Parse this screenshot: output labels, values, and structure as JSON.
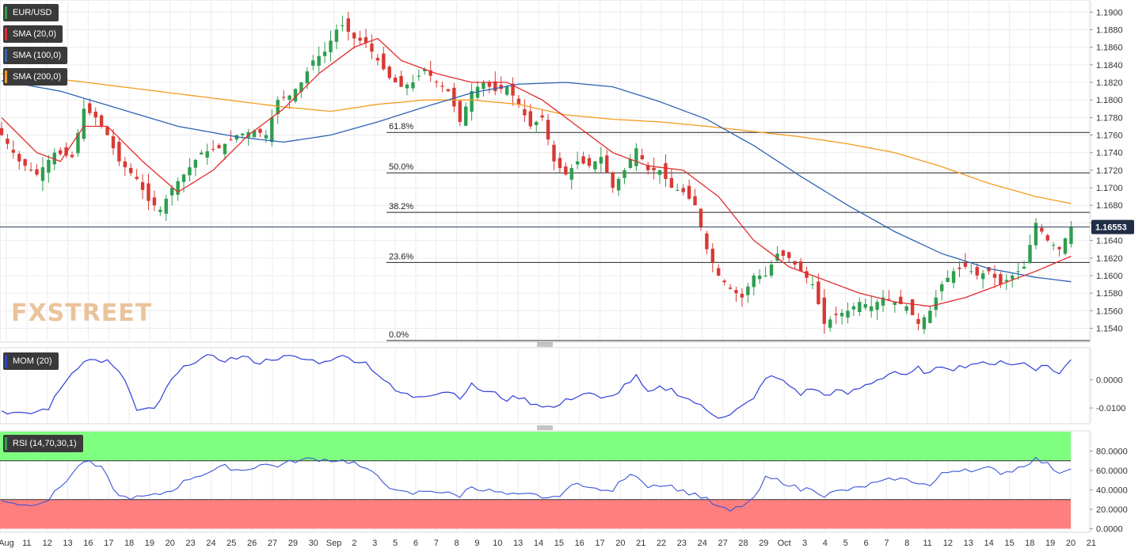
{
  "legend": {
    "symbol": "EUR/USD",
    "sma20": "SMA (20,0)",
    "sma100": "SMA (100,0)",
    "sma200": "SMA (200,0)",
    "mom": "MOM (20)",
    "rsi": "RSI (14,70,30,1)"
  },
  "watermark": {
    "part1": "FX",
    "part2": "STREET"
  },
  "current_price": "1.16553",
  "colors": {
    "up": "#2e9e4f",
    "down": "#d83a34",
    "sma20": "#e32b2b",
    "sma100": "#2e64b4",
    "sma200": "#f49c1e",
    "mom": "#2f3fd8",
    "rsi": "#3a55d8",
    "rsi_over": "#7fff7f",
    "rsi_under": "#ff7f7f"
  },
  "chart_data": [
    {
      "type": "candlestick",
      "name": "price",
      "x_tick_labels": [
        "Aug",
        "11",
        "12",
        "13",
        "16",
        "17",
        "18",
        "19",
        "20",
        "23",
        "24",
        "25",
        "26",
        "27",
        "29",
        "30",
        "Sep",
        "2",
        "3",
        "5",
        "6",
        "7",
        "8",
        "9",
        "10",
        "13",
        "14",
        "15",
        "16",
        "17",
        "20",
        "21",
        "22",
        "23",
        "24",
        "27",
        "28",
        "29",
        "Oct",
        "3",
        "4",
        "5",
        "6",
        "7",
        "8",
        "11",
        "12",
        "13",
        "14",
        "15",
        "18",
        "19",
        "20",
        "21"
      ],
      "y_ticks": [
        "1.1540",
        "1.1560",
        "1.1580",
        "1.1600",
        "1.1620",
        "1.1640",
        "1.1660",
        "1.1680",
        "1.1700",
        "1.1720",
        "1.1740",
        "1.1760",
        "1.1780",
        "1.1800",
        "1.1820",
        "1.1840",
        "1.1860",
        "1.1880",
        "1.1900"
      ],
      "ylim": [
        1.1526,
        1.1912
      ],
      "fibonacci": [
        {
          "label": "61.8%",
          "value": 1.1763
        },
        {
          "label": "50.0%",
          "value": 1.1717
        },
        {
          "label": "38.2%",
          "value": 1.1672
        },
        {
          "label": "23.6%",
          "value": 1.1615
        },
        {
          "label": "0.0%",
          "value": 1.1526
        }
      ],
      "close_anchors": [
        [
          0,
          1.176
        ],
        [
          3,
          1.173
        ],
        [
          6,
          1.1715
        ],
        [
          9,
          1.174
        ],
        [
          12,
          1.1735
        ],
        [
          14,
          1.179
        ],
        [
          16,
          1.178
        ],
        [
          18,
          1.176
        ],
        [
          20,
          1.173
        ],
        [
          23,
          1.171
        ],
        [
          25,
          1.1685
        ],
        [
          27,
          1.1675
        ],
        [
          29,
          1.17
        ],
        [
          31,
          1.1715
        ],
        [
          34,
          1.174
        ],
        [
          37,
          1.1745
        ],
        [
          40,
          1.176
        ],
        [
          43,
          1.1765
        ],
        [
          45,
          1.176
        ],
        [
          47,
          1.18
        ],
        [
          49,
          1.1805
        ],
        [
          51,
          1.182
        ],
        [
          53,
          1.1845
        ],
        [
          55,
          1.1855
        ],
        [
          57,
          1.188
        ],
        [
          58,
          1.1885
        ],
        [
          60,
          1.187
        ],
        [
          62,
          1.1865
        ],
        [
          64,
          1.1845
        ],
        [
          66,
          1.1825
        ],
        [
          68,
          1.1815
        ],
        [
          70,
          1.182
        ],
        [
          72,
          1.1835
        ],
        [
          74,
          1.182
        ],
        [
          76,
          1.181
        ],
        [
          78,
          1.1775
        ],
        [
          80,
          1.181
        ],
        [
          82,
          1.182
        ],
        [
          84,
          1.181
        ],
        [
          86,
          1.1815
        ],
        [
          88,
          1.1795
        ],
        [
          90,
          1.177
        ],
        [
          92,
          1.178
        ],
        [
          94,
          1.173
        ],
        [
          96,
          1.1715
        ],
        [
          98,
          1.173
        ],
        [
          100,
          1.1725
        ],
        [
          102,
          1.1735
        ],
        [
          104,
          1.17
        ],
        [
          106,
          1.172
        ],
        [
          108,
          1.1745
        ],
        [
          110,
          1.172
        ],
        [
          112,
          1.172
        ],
        [
          114,
          1.17
        ],
        [
          116,
          1.1695
        ],
        [
          118,
          1.168
        ],
        [
          120,
          1.163
        ],
        [
          122,
          1.16
        ],
        [
          124,
          1.1585
        ],
        [
          126,
          1.1575
        ],
        [
          128,
          1.16
        ],
        [
          130,
          1.16
        ],
        [
          132,
          1.1625
        ],
        [
          134,
          1.162
        ],
        [
          136,
          1.1605
        ],
        [
          138,
          1.159
        ],
        [
          140,
          1.1545
        ],
        [
          142,
          1.1555
        ],
        [
          144,
          1.156
        ],
        [
          146,
          1.157
        ],
        [
          148,
          1.1565
        ],
        [
          150,
          1.1575
        ],
        [
          152,
          1.157
        ],
        [
          154,
          1.1565
        ],
        [
          156,
          1.1545
        ],
        [
          158,
          1.156
        ],
        [
          160,
          1.159
        ],
        [
          162,
          1.1605
        ],
        [
          164,
          1.161
        ],
        [
          166,
          1.16
        ],
        [
          168,
          1.1605
        ],
        [
          170,
          1.159
        ],
        [
          172,
          1.16
        ],
        [
          174,
          1.161
        ],
        [
          176,
          1.166
        ],
        [
          177,
          1.165
        ],
        [
          178,
          1.164
        ],
        [
          180,
          1.163
        ],
        [
          182,
          1.1655
        ]
      ],
      "sma20": [
        [
          0,
          1.178
        ],
        [
          6,
          1.174
        ],
        [
          10,
          1.173
        ],
        [
          14,
          1.177
        ],
        [
          18,
          1.177
        ],
        [
          24,
          1.173
        ],
        [
          30,
          1.1695
        ],
        [
          36,
          1.172
        ],
        [
          42,
          1.176
        ],
        [
          48,
          1.179
        ],
        [
          54,
          1.183
        ],
        [
          60,
          1.186
        ],
        [
          64,
          1.187
        ],
        [
          68,
          1.1845
        ],
        [
          74,
          1.183
        ],
        [
          80,
          1.182
        ],
        [
          86,
          1.182
        ],
        [
          92,
          1.18
        ],
        [
          98,
          1.177
        ],
        [
          104,
          1.174
        ],
        [
          110,
          1.1725
        ],
        [
          116,
          1.172
        ],
        [
          122,
          1.169
        ],
        [
          128,
          1.164
        ],
        [
          134,
          1.161
        ],
        [
          140,
          1.1595
        ],
        [
          146,
          1.158
        ],
        [
          152,
          1.157
        ],
        [
          158,
          1.1565
        ],
        [
          164,
          1.1575
        ],
        [
          170,
          1.159
        ],
        [
          176,
          1.1605
        ],
        [
          182,
          1.1622
        ]
      ],
      "sma100": [
        [
          0,
          1.1822
        ],
        [
          10,
          1.181
        ],
        [
          20,
          1.179
        ],
        [
          30,
          1.177
        ],
        [
          40,
          1.1758
        ],
        [
          48,
          1.1752
        ],
        [
          56,
          1.176
        ],
        [
          64,
          1.1775
        ],
        [
          72,
          1.1792
        ],
        [
          80,
          1.1808
        ],
        [
          88,
          1.1818
        ],
        [
          96,
          1.182
        ],
        [
          104,
          1.1815
        ],
        [
          112,
          1.1798
        ],
        [
          120,
          1.1778
        ],
        [
          128,
          1.1748
        ],
        [
          136,
          1.1713
        ],
        [
          144,
          1.168
        ],
        [
          152,
          1.165
        ],
        [
          160,
          1.1625
        ],
        [
          168,
          1.1608
        ],
        [
          176,
          1.1598
        ],
        [
          182,
          1.1593
        ]
      ],
      "sma200": [
        [
          0,
          1.183
        ],
        [
          12,
          1.1822
        ],
        [
          24,
          1.1812
        ],
        [
          36,
          1.1802
        ],
        [
          48,
          1.1792
        ],
        [
          56,
          1.1787
        ],
        [
          64,
          1.1795
        ],
        [
          72,
          1.18
        ],
        [
          80,
          1.18
        ],
        [
          88,
          1.1795
        ],
        [
          96,
          1.1783
        ],
        [
          104,
          1.1778
        ],
        [
          112,
          1.1775
        ],
        [
          120,
          1.177
        ],
        [
          128,
          1.1764
        ],
        [
          136,
          1.1758
        ],
        [
          144,
          1.175
        ],
        [
          152,
          1.174
        ],
        [
          160,
          1.1724
        ],
        [
          168,
          1.1705
        ],
        [
          176,
          1.169
        ],
        [
          182,
          1.1682
        ]
      ]
    },
    {
      "type": "line",
      "name": "MOM (20)",
      "y_ticks": [
        "0.0000",
        "-0.0100"
      ],
      "ylim": [
        -0.015,
        0.011
      ],
      "anchors": [
        [
          0,
          -0.011
        ],
        [
          4,
          -0.0125
        ],
        [
          8,
          -0.01
        ],
        [
          11,
          0.0
        ],
        [
          14,
          0.007
        ],
        [
          18,
          0.0065
        ],
        [
          21,
          0.0
        ],
        [
          23,
          -0.011
        ],
        [
          26,
          -0.0105
        ],
        [
          29,
          0.0
        ],
        [
          32,
          0.006
        ],
        [
          35,
          0.008
        ],
        [
          38,
          0.007
        ],
        [
          41,
          0.008
        ],
        [
          44,
          0.006
        ],
        [
          46,
          0.0075
        ],
        [
          49,
          0.008
        ],
        [
          52,
          0.007
        ],
        [
          55,
          0.006
        ],
        [
          57,
          0.0085
        ],
        [
          59,
          0.0075
        ],
        [
          62,
          0.006
        ],
        [
          64,
          0.002
        ],
        [
          67,
          -0.004
        ],
        [
          70,
          -0.006
        ],
        [
          73,
          -0.005
        ],
        [
          76,
          -0.004
        ],
        [
          78,
          -0.006
        ],
        [
          80,
          -0.002
        ],
        [
          82,
          -0.004
        ],
        [
          84,
          -0.005
        ],
        [
          86,
          -0.007
        ],
        [
          88,
          -0.006
        ],
        [
          90,
          -0.008
        ],
        [
          92,
          -0.009
        ],
        [
          94,
          -0.01
        ],
        [
          96,
          -0.0075
        ],
        [
          98,
          -0.0055
        ],
        [
          100,
          -0.0045
        ],
        [
          102,
          -0.007
        ],
        [
          104,
          -0.006
        ],
        [
          106,
          -0.002
        ],
        [
          108,
          0.001
        ],
        [
          110,
          -0.005
        ],
        [
          112,
          -0.003
        ],
        [
          114,
          -0.0035
        ],
        [
          116,
          -0.006
        ],
        [
          118,
          -0.008
        ],
        [
          120,
          -0.011
        ],
        [
          122,
          -0.013
        ],
        [
          124,
          -0.012
        ],
        [
          126,
          -0.0095
        ],
        [
          128,
          -0.007
        ],
        [
          130,
          0.001
        ],
        [
          132,
          0.0005
        ],
        [
          134,
          -0.002
        ],
        [
          136,
          -0.005
        ],
        [
          138,
          -0.003
        ],
        [
          140,
          -0.0055
        ],
        [
          142,
          -0.004
        ],
        [
          144,
          -0.005
        ],
        [
          146,
          -0.003
        ],
        [
          148,
          -0.001
        ],
        [
          150,
          0.001
        ],
        [
          152,
          0.003
        ],
        [
          154,
          0.001
        ],
        [
          156,
          0.004
        ],
        [
          158,
          0.002
        ],
        [
          160,
          0.005
        ],
        [
          162,
          0.004
        ],
        [
          164,
          0.005
        ],
        [
          166,
          0.006
        ],
        [
          168,
          0.005
        ],
        [
          170,
          0.007
        ],
        [
          172,
          0.005
        ],
        [
          174,
          0.006
        ],
        [
          176,
          0.004
        ],
        [
          178,
          0.005
        ],
        [
          180,
          0.002
        ],
        [
          182,
          0.007
        ]
      ]
    },
    {
      "type": "line",
      "name": "RSI (14,70,30,1)",
      "y_ticks": [
        "80.0000",
        "60.0000",
        "40.0000",
        "20.0000",
        "0.0000"
      ],
      "ylim": [
        -2,
        100
      ],
      "overbought": 70,
      "oversold": 30,
      "anchors": [
        [
          0,
          30
        ],
        [
          4,
          24
        ],
        [
          8,
          30
        ],
        [
          11,
          50
        ],
        [
          14,
          70
        ],
        [
          17,
          62
        ],
        [
          20,
          33
        ],
        [
          23,
          32
        ],
        [
          26,
          34
        ],
        [
          29,
          40
        ],
        [
          32,
          52
        ],
        [
          35,
          58
        ],
        [
          38,
          64
        ],
        [
          41,
          60
        ],
        [
          44,
          66
        ],
        [
          47,
          65
        ],
        [
          50,
          70
        ],
        [
          53,
          72
        ],
        [
          56,
          71
        ],
        [
          58,
          70
        ],
        [
          60,
          68
        ],
        [
          62,
          60
        ],
        [
          64,
          55
        ],
        [
          67,
          38
        ],
        [
          70,
          36
        ],
        [
          73,
          40
        ],
        [
          76,
          36
        ],
        [
          78,
          34
        ],
        [
          80,
          44
        ],
        [
          82,
          40
        ],
        [
          84,
          38
        ],
        [
          86,
          35
        ],
        [
          88,
          34
        ],
        [
          90,
          35
        ],
        [
          92,
          33
        ],
        [
          94,
          31
        ],
        [
          96,
          40
        ],
        [
          98,
          46
        ],
        [
          100,
          45
        ],
        [
          102,
          38
        ],
        [
          104,
          40
        ],
        [
          106,
          52
        ],
        [
          108,
          56
        ],
        [
          110,
          44
        ],
        [
          112,
          46
        ],
        [
          114,
          44
        ],
        [
          116,
          38
        ],
        [
          118,
          36
        ],
        [
          120,
          30
        ],
        [
          122,
          22
        ],
        [
          124,
          18
        ],
        [
          126,
          24
        ],
        [
          128,
          30
        ],
        [
          130,
          52
        ],
        [
          132,
          50
        ],
        [
          134,
          46
        ],
        [
          136,
          40
        ],
        [
          138,
          42
        ],
        [
          140,
          34
        ],
        [
          142,
          38
        ],
        [
          144,
          40
        ],
        [
          146,
          42
        ],
        [
          148,
          46
        ],
        [
          150,
          48
        ],
        [
          152,
          52
        ],
        [
          154,
          50
        ],
        [
          156,
          48
        ],
        [
          158,
          44
        ],
        [
          160,
          56
        ],
        [
          162,
          60
        ],
        [
          164,
          62
        ],
        [
          166,
          60
        ],
        [
          168,
          62
        ],
        [
          170,
          58
        ],
        [
          172,
          60
        ],
        [
          174,
          66
        ],
        [
          176,
          72
        ],
        [
          178,
          66
        ],
        [
          180,
          58
        ],
        [
          182,
          64
        ]
      ]
    }
  ]
}
